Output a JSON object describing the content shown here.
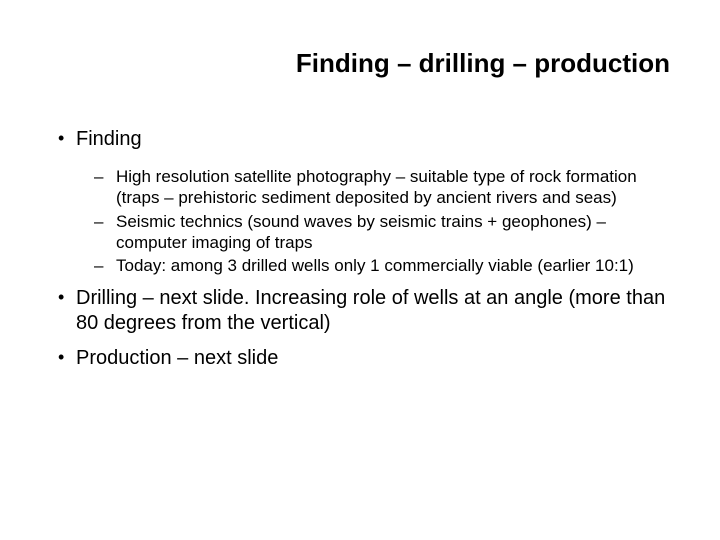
{
  "title": "Finding – drilling – production",
  "bullets": [
    {
      "text": "Finding",
      "children": [
        {
          "text": "High resolution satellite photography – suitable type of rock formation (traps – prehistoric sediment deposited by ancient rivers and seas)"
        },
        {
          "text": "Seismic technics (sound waves by seismic trains + geophones) – computer imaging of traps"
        },
        {
          "text": "Today: among 3 drilled wells only 1 commercially viable (earlier 10:1)"
        }
      ]
    },
    {
      "text": "Drilling – next slide. Increasing role of wells at an angle (more than 80 degrees from the vertical)"
    },
    {
      "text": "Production – next slide"
    }
  ],
  "colors": {
    "background": "#ffffff",
    "text": "#000000"
  },
  "typography": {
    "title_fontsize_pt": 20,
    "title_weight": "bold",
    "body_fontsize_pt": 15,
    "sub_fontsize_pt": 13,
    "font_family": "Arial"
  }
}
